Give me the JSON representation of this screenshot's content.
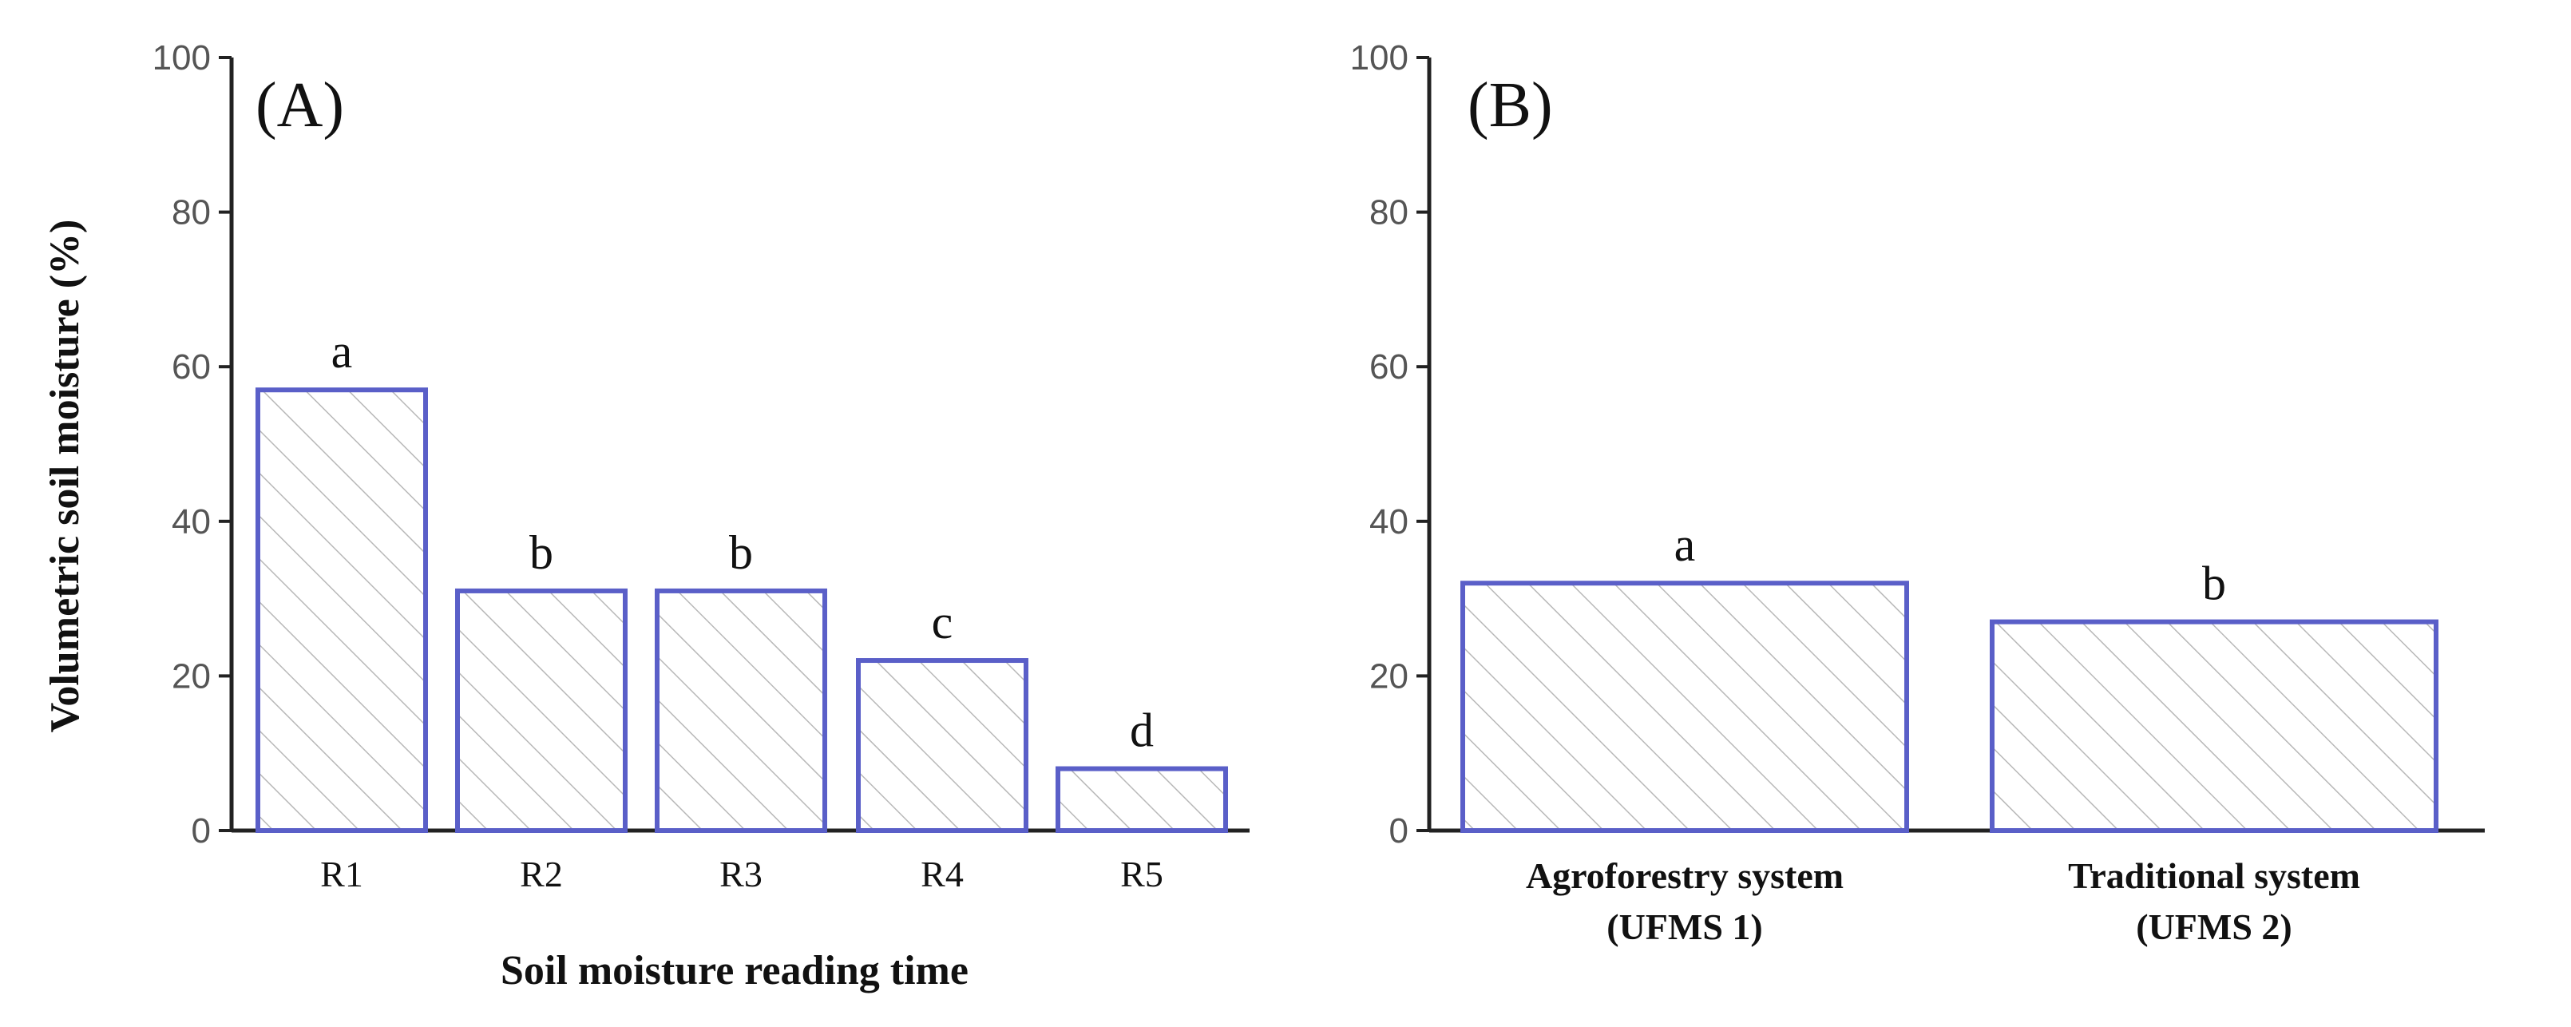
{
  "colors": {
    "bar_stroke": "#5a5fc8",
    "hatch": "#b8b8b8",
    "axis": "#222222"
  },
  "chart_data": [
    {
      "type": "bar",
      "panel_label": "(A)",
      "categories": [
        "R1",
        "R2",
        "R3",
        "R4",
        "R5"
      ],
      "values": [
        57,
        31,
        31,
        22,
        8
      ],
      "letters": [
        "a",
        "b",
        "b",
        "c",
        "d"
      ],
      "xlabel": "Soil moisture reading time",
      "ylabel": "Volumetric soil moisture (%)",
      "ylim": [
        0,
        100
      ],
      "yticks": [
        "0",
        "20",
        "40",
        "60",
        "80",
        "100"
      ],
      "hatch": "diagonal"
    },
    {
      "type": "bar",
      "panel_label": "(B)",
      "categories": [
        "Agroforestry system",
        "Traditional system"
      ],
      "category_sublabels": [
        "(UFMS 1)",
        "(UFMS 2)"
      ],
      "values": [
        32,
        27
      ],
      "letters": [
        "a",
        "b"
      ],
      "xlabel": "",
      "ylabel": "",
      "ylim": [
        0,
        100
      ],
      "yticks": [
        "0",
        "20",
        "40",
        "60",
        "80",
        "100"
      ],
      "hatch": "diagonal"
    }
  ]
}
